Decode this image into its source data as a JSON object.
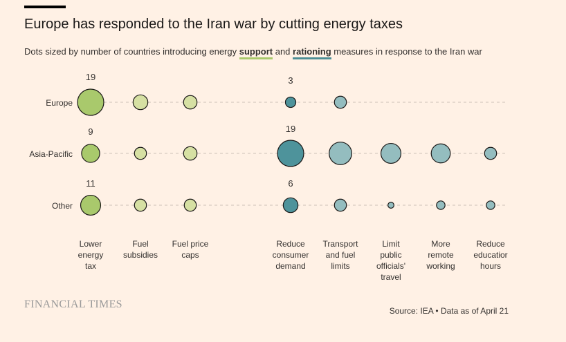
{
  "chart_data": {
    "type": "scatter",
    "title": "Europe has responded to the Iran war by cutting energy taxes",
    "subtitle_parts": [
      "Dots sized by number of countries introducing energy ",
      "support",
      " and ",
      "rationing",
      " measures in response to the Iran war"
    ],
    "categories": [
      "Lower energy tax",
      "Fuel subsidies",
      "Fuel price caps",
      "Reduce consumer demand",
      "Transport and fuel limits",
      "Limit public officials' travel",
      "More remote working",
      "Reduce education hours"
    ],
    "category_labels": [
      [
        "Lower",
        "energy",
        "tax"
      ],
      [
        "Fuel",
        "subsidies"
      ],
      [
        "Fuel price",
        "caps"
      ],
      [
        "Reduce",
        "consumer",
        "demand"
      ],
      [
        "Transport",
        "and fuel",
        "limits"
      ],
      [
        "Limit",
        "public",
        "officials'",
        "travel"
      ],
      [
        "More",
        "remote",
        "working"
      ],
      [
        "Reduce",
        "educatior",
        "hours"
      ]
    ],
    "category_group": [
      "support",
      "support",
      "support",
      "rationing",
      "rationing",
      "rationing",
      "rationing",
      "rationing"
    ],
    "series": [
      {
        "name": "Europe",
        "values": [
          19,
          6,
          5,
          3,
          4,
          0,
          0,
          0
        ],
        "labels": {
          "0": "19",
          "3": "3"
        }
      },
      {
        "name": "Asia-Pacific",
        "values": [
          9,
          4,
          5,
          19,
          14,
          11,
          10,
          4
        ],
        "labels": {
          "0": "9",
          "3": "19"
        }
      },
      {
        "name": "Other",
        "values": [
          11,
          4,
          4,
          6,
          4,
          1,
          2,
          2
        ],
        "labels": {
          "0": "11",
          "3": "6"
        }
      }
    ],
    "colors": {
      "support_primary": "#a9c96c",
      "support_secondary": "#d6e0a3",
      "rationing_primary": "#4e939b",
      "rationing_secondary": "#94bdbf",
      "support_underline": "#a9c96c",
      "rationing_underline": "#4e8f96"
    }
  },
  "footer": {
    "logo": "FINANCIAL TIMES",
    "source": "Source: IEA • Data as of April 21"
  }
}
